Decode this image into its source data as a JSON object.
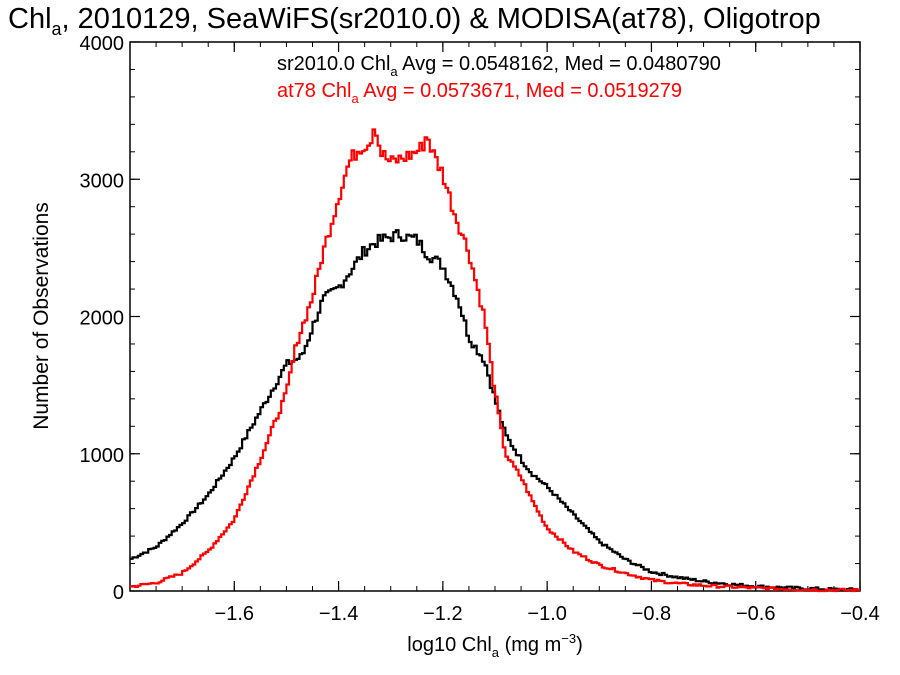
{
  "chart_data": {
    "type": "line",
    "title": {
      "main": "Chl",
      "sub": "a",
      "rest": ", 2010129, SeaWiFS(sr2010.0) & MODISA(at78), Oligotrop"
    },
    "xlabel": {
      "pre": "log10 Chl",
      "sub": "a",
      "mid": " (mg m",
      "sup": "−3",
      "post": ")"
    },
    "ylabel": "Number of Observations",
    "xlim": [
      -1.8,
      -0.4
    ],
    "ylim": [
      0,
      4000
    ],
    "xticks": [
      {
        "value": -1.6,
        "label": "−1.6"
      },
      {
        "value": -1.4,
        "label": "−1.4"
      },
      {
        "value": -1.2,
        "label": "−1.2"
      },
      {
        "value": -1.0,
        "label": "−1.0"
      },
      {
        "value": -0.8,
        "label": "−0.8"
      },
      {
        "value": -0.6,
        "label": "−0.6"
      },
      {
        "value": -0.4,
        "label": "−0.4"
      }
    ],
    "yticks": [
      {
        "value": 0,
        "label": "0"
      },
      {
        "value": 1000,
        "label": "1000"
      },
      {
        "value": 2000,
        "label": "2000"
      },
      {
        "value": 3000,
        "label": "3000"
      },
      {
        "value": 4000,
        "label": "4000"
      }
    ],
    "grid": false,
    "legend_position": "top-right",
    "series": [
      {
        "stats": {
          "pre": "sr2010.0 Chl",
          "sub": "a",
          "post": " Avg = 0.0548162, Med = 0.0480790"
        },
        "color": "#000000",
        "x": [
          -1.8,
          -1.75,
          -1.7,
          -1.65,
          -1.6,
          -1.55,
          -1.5,
          -1.47,
          -1.45,
          -1.43,
          -1.4,
          -1.37,
          -1.35,
          -1.33,
          -1.3,
          -1.28,
          -1.27,
          -1.25,
          -1.23,
          -1.2,
          -1.17,
          -1.15,
          -1.12,
          -1.1,
          -1.08,
          -1.05,
          -1.03,
          -1.0,
          -0.95,
          -0.9,
          -0.85,
          -0.8,
          -0.75,
          -0.7,
          -0.65,
          -0.6,
          -0.55,
          -0.5,
          -0.45,
          -0.4
        ],
        "y": [
          230,
          320,
          490,
          700,
          970,
          1310,
          1650,
          1710,
          1920,
          2120,
          2210,
          2370,
          2480,
          2540,
          2580,
          2600,
          2580,
          2560,
          2460,
          2370,
          2120,
          1850,
          1680,
          1400,
          1140,
          960,
          860,
          760,
          560,
          360,
          230,
          140,
          100,
          70,
          50,
          35,
          25,
          18,
          12,
          8
        ]
      },
      {
        "stats": {
          "pre": "at78 Chl",
          "sub": "a",
          "post": " Avg = 0.0573671, Med = 0.0519279"
        },
        "color": "#ff0000",
        "x": [
          -1.8,
          -1.75,
          -1.7,
          -1.65,
          -1.6,
          -1.55,
          -1.5,
          -1.48,
          -1.45,
          -1.43,
          -1.4,
          -1.38,
          -1.36,
          -1.34,
          -1.33,
          -1.32,
          -1.3,
          -1.28,
          -1.26,
          -1.24,
          -1.23,
          -1.22,
          -1.2,
          -1.18,
          -1.15,
          -1.12,
          -1.1,
          -1.08,
          -1.05,
          -1.03,
          -1.0,
          -0.95,
          -0.9,
          -0.85,
          -0.8,
          -0.75,
          -0.7,
          -0.65,
          -0.6,
          -0.55,
          -0.5,
          -0.45,
          -0.4
        ],
        "y": [
          30,
          60,
          130,
          290,
          520,
          960,
          1440,
          1810,
          2140,
          2460,
          2870,
          3120,
          3230,
          3270,
          3420,
          3200,
          3120,
          3150,
          3180,
          3230,
          3330,
          3200,
          3040,
          2780,
          2470,
          1990,
          1450,
          1000,
          830,
          670,
          460,
          290,
          190,
          130,
          80,
          55,
          40,
          30,
          22,
          15,
          10,
          7,
          5
        ]
      }
    ]
  }
}
